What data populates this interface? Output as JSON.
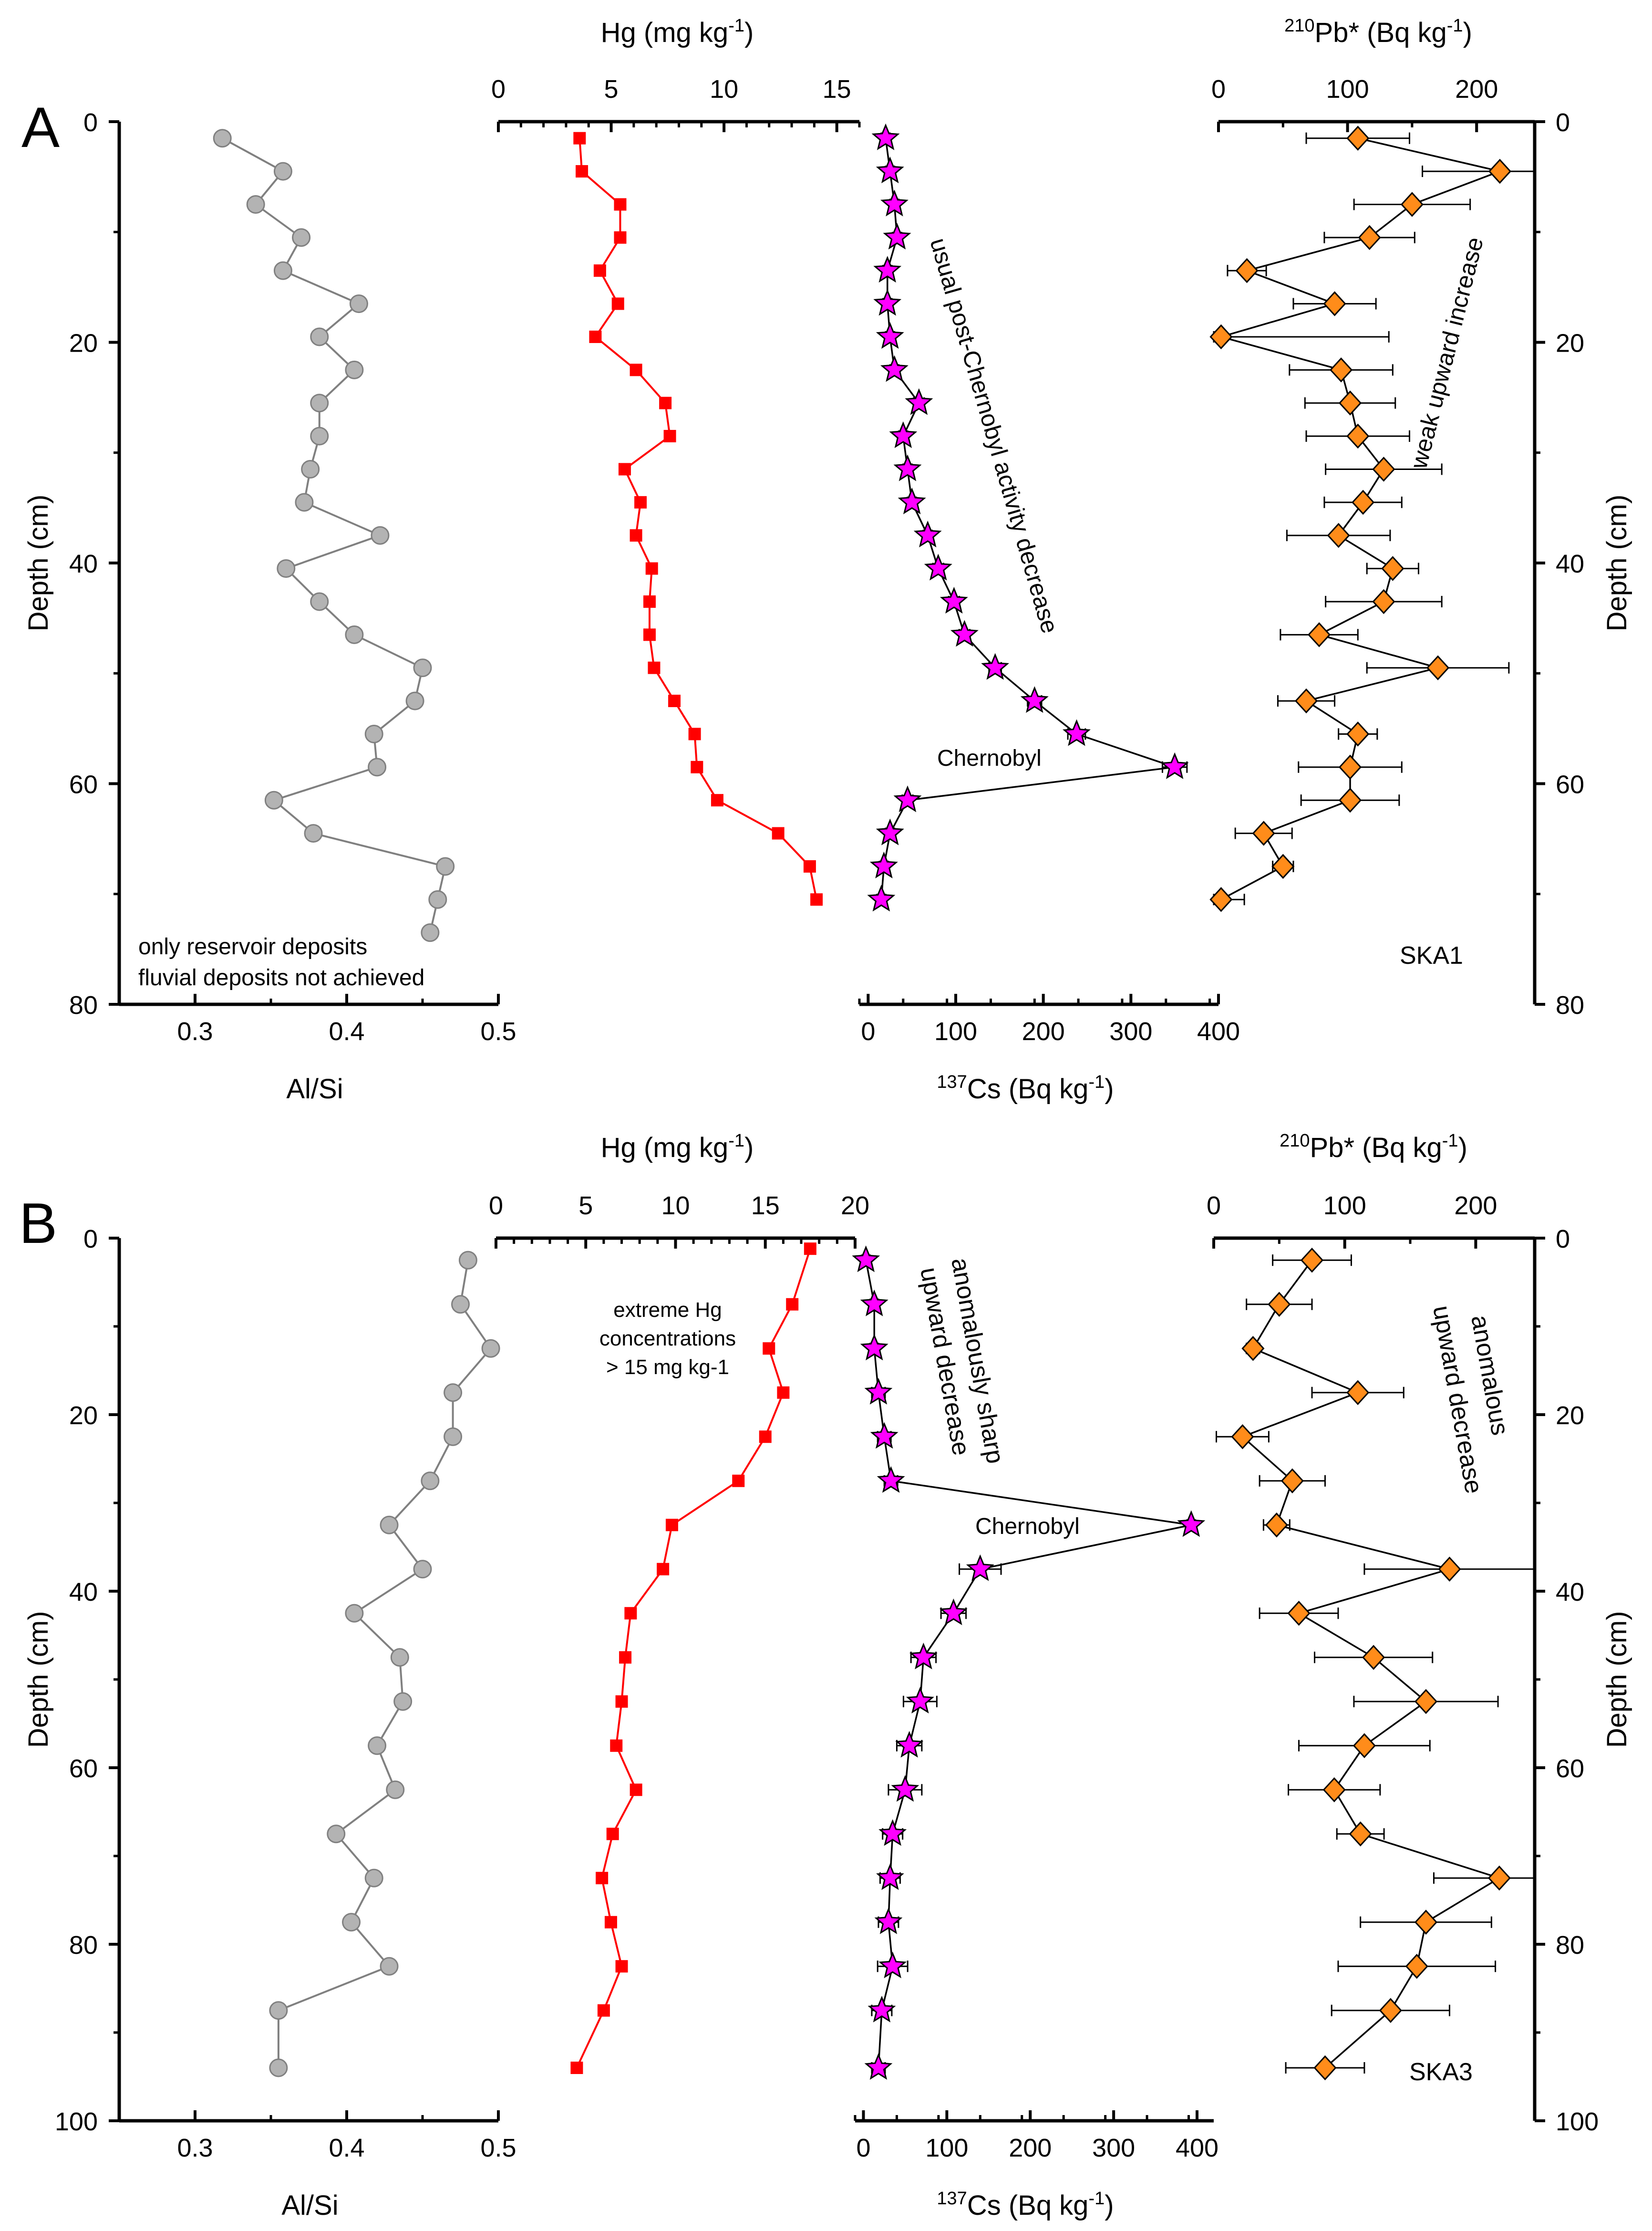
{
  "figure_caption": "Sediment cores SKA1 and SKA3: Al/Si, Hg, 137Cs and 210Pb* profiles vs depth",
  "colors": {
    "alsi": "#b3b3b3",
    "alsi_line": "#808080",
    "hg": "#ff0000",
    "cs": "#ff00ff",
    "pb": "#ff8c1a",
    "axis": "#000000"
  },
  "chart_data": [
    {
      "panel": "A",
      "core": "SKA1",
      "depth_axis": {
        "label": "Depth (cm)",
        "range": [
          0,
          80
        ],
        "ticks": [
          0,
          20,
          40,
          60,
          80
        ]
      },
      "alsi": {
        "type": "line",
        "xlabel": "Al/Si",
        "xlim": [
          0.25,
          0.5
        ],
        "xticks": [
          0.3,
          0.4,
          0.5
        ],
        "xtick_labels": [
          "0.3",
          "0.4",
          "0.5"
        ],
        "points": [
          [
            0.318,
            1.5
          ],
          [
            0.358,
            4.5
          ],
          [
            0.34,
            7.5
          ],
          [
            0.37,
            10.5
          ],
          [
            0.358,
            13.5
          ],
          [
            0.408,
            16.5
          ],
          [
            0.382,
            19.5
          ],
          [
            0.405,
            22.5
          ],
          [
            0.382,
            25.5
          ],
          [
            0.382,
            28.5
          ],
          [
            0.376,
            31.5
          ],
          [
            0.372,
            34.5
          ],
          [
            0.422,
            37.5
          ],
          [
            0.36,
            40.5
          ],
          [
            0.382,
            43.5
          ],
          [
            0.405,
            46.5
          ],
          [
            0.45,
            49.5
          ],
          [
            0.445,
            52.5
          ],
          [
            0.418,
            55.5
          ],
          [
            0.42,
            58.5
          ],
          [
            0.352,
            61.5
          ],
          [
            0.378,
            64.5
          ],
          [
            0.465,
            67.5
          ],
          [
            0.46,
            70.5
          ],
          [
            0.455,
            73.5
          ]
        ]
      },
      "hg": {
        "type": "line",
        "xlabel": "Hg (mg kg",
        "xlabel_sup": "-1",
        "xlabel_end": ")",
        "xlim": [
          0,
          16
        ],
        "xticks": [
          0,
          5,
          10,
          15
        ],
        "xtick_labels": [
          "0",
          "5",
          "10",
          "15"
        ],
        "points": [
          [
            3.6,
            1.5
          ],
          [
            3.7,
            4.5
          ],
          [
            5.4,
            7.5
          ],
          [
            5.4,
            10.5
          ],
          [
            4.5,
            13.5
          ],
          [
            5.3,
            16.5
          ],
          [
            4.3,
            19.5
          ],
          [
            6.1,
            22.5
          ],
          [
            7.4,
            25.5
          ],
          [
            7.6,
            28.5
          ],
          [
            5.6,
            31.5
          ],
          [
            6.3,
            34.5
          ],
          [
            6.1,
            37.5
          ],
          [
            6.8,
            40.5
          ],
          [
            6.7,
            43.5
          ],
          [
            6.7,
            46.5
          ],
          [
            6.9,
            49.5
          ],
          [
            7.8,
            52.5
          ],
          [
            8.7,
            55.5
          ],
          [
            8.8,
            58.5
          ],
          [
            9.7,
            61.5
          ],
          [
            12.4,
            64.5
          ],
          [
            13.8,
            67.5
          ],
          [
            14.1,
            70.5
          ]
        ]
      },
      "cs": {
        "type": "scatter-line",
        "xlabel": "Cs (Bq kg",
        "xlabel_pre": "137",
        "xlabel_sup": "-1",
        "xlabel_end": ")",
        "xlim": [
          -10,
          400
        ],
        "xticks": [
          0,
          100,
          200,
          300,
          400
        ],
        "xtick_labels": [
          "0",
          "100",
          "200",
          "300",
          "400"
        ],
        "points": [
          [
            20,
            1.5
          ],
          [
            25,
            4.5
          ],
          [
            30,
            7.5
          ],
          [
            33,
            10.5
          ],
          [
            22,
            13.5
          ],
          [
            22,
            16.5
          ],
          [
            25,
            19.5
          ],
          [
            30,
            22.5
          ],
          [
            58,
            25.5
          ],
          [
            40,
            28.5
          ],
          [
            45,
            31.5
          ],
          [
            50,
            34.5
          ],
          [
            68,
            37.5
          ],
          [
            80,
            40.5
          ],
          [
            98,
            43.5
          ],
          [
            110,
            46.5
          ],
          [
            145,
            49.5
          ],
          [
            190,
            52.5
          ],
          [
            238,
            55.5
          ],
          [
            350,
            58.5
          ],
          [
            45,
            61.5
          ],
          [
            25,
            64.5
          ],
          [
            18,
            67.5
          ],
          [
            15,
            70.5
          ]
        ],
        "errors": [
          5,
          5,
          5,
          5,
          5,
          5,
          5,
          5,
          6,
          5,
          5,
          5,
          5,
          6,
          6,
          6,
          7,
          8,
          10,
          14,
          6,
          5,
          5,
          5
        ]
      },
      "pb": {
        "type": "scatter-line",
        "xlabel": "Pb* (Bq kg",
        "xlabel_pre": "210",
        "xlabel_sup": "-1",
        "xlabel_end": ")",
        "xlim": [
          0,
          245
        ],
        "xticks": [
          0,
          100,
          200
        ],
        "xtick_labels": [
          "0",
          "100",
          "200"
        ],
        "points": [
          [
            108,
            1.5
          ],
          [
            218,
            4.5
          ],
          [
            150,
            7.5
          ],
          [
            117,
            10.5
          ],
          [
            22,
            13.5
          ],
          [
            90,
            16.5
          ],
          [
            2,
            19.5
          ],
          [
            95,
            22.5
          ],
          [
            102,
            25.5
          ],
          [
            108,
            28.5
          ],
          [
            128,
            31.5
          ],
          [
            112,
            34.5
          ],
          [
            93,
            37.5
          ],
          [
            135,
            40.5
          ],
          [
            128,
            43.5
          ],
          [
            78,
            46.5
          ],
          [
            170,
            49.5
          ],
          [
            68,
            52.5
          ],
          [
            108,
            55.5
          ],
          [
            102,
            58.5
          ],
          [
            102,
            61.5
          ],
          [
            35,
            64.5
          ],
          [
            50,
            67.5
          ],
          [
            2,
            70.5
          ]
        ],
        "errors": [
          40,
          60,
          45,
          35,
          15,
          32,
          130,
          40,
          35,
          40,
          45,
          30,
          40,
          20,
          45,
          30,
          55,
          22,
          15,
          40,
          38,
          22,
          8,
          18
        ]
      },
      "annotations": [
        "only reservoir deposits",
        "fluvial deposits not achieved",
        "usual post-Chernobyl activity decrease",
        "Chernobyl",
        "weak upward increase",
        "SKA1"
      ],
      "panel_label": "A"
    },
    {
      "panel": "B",
      "core": "SKA3",
      "depth_axis": {
        "label": "Depth (cm)",
        "range": [
          0,
          100
        ],
        "ticks": [
          0,
          20,
          40,
          60,
          80,
          100
        ]
      },
      "alsi": {
        "type": "line",
        "xlabel": "Al/Si",
        "xlim": [
          0.25,
          0.5
        ],
        "xticks": [
          0.3,
          0.4,
          0.5
        ],
        "xtick_labels": [
          "0.3",
          "0.4",
          "0.5"
        ],
        "points": [
          [
            0.48,
            2.5
          ],
          [
            0.475,
            7.5
          ],
          [
            0.495,
            12.5
          ],
          [
            0.47,
            17.5
          ],
          [
            0.47,
            22.5
          ],
          [
            0.455,
            27.5
          ],
          [
            0.428,
            32.5
          ],
          [
            0.45,
            37.5
          ],
          [
            0.405,
            42.5
          ],
          [
            0.435,
            47.5
          ],
          [
            0.437,
            52.5
          ],
          [
            0.42,
            57.5
          ],
          [
            0.432,
            62.5
          ],
          [
            0.393,
            67.5
          ],
          [
            0.418,
            72.5
          ],
          [
            0.403,
            77.5
          ],
          [
            0.428,
            82.5
          ],
          [
            0.355,
            87.5
          ],
          [
            0.355,
            94
          ]
        ]
      },
      "hg": {
        "type": "line",
        "xlabel": "Hg (mg kg",
        "xlabel_sup": "-1",
        "xlabel_end": ")",
        "xlim": [
          0,
          20
        ],
        "xticks": [
          0,
          5,
          10,
          15,
          20
        ],
        "xtick_labels": [
          "0",
          "5",
          "10",
          "15",
          "20"
        ],
        "points": [
          [
            17.5,
            1.2
          ],
          [
            16.5,
            7.5
          ],
          [
            15.2,
            12.5
          ],
          [
            16.0,
            17.5
          ],
          [
            15.0,
            22.5
          ],
          [
            13.5,
            27.5
          ],
          [
            9.8,
            32.5
          ],
          [
            9.3,
            37.5
          ],
          [
            7.5,
            42.5
          ],
          [
            7.2,
            47.5
          ],
          [
            7.0,
            52.5
          ],
          [
            6.7,
            57.5
          ],
          [
            7.8,
            62.5
          ],
          [
            6.5,
            67.5
          ],
          [
            5.9,
            72.5
          ],
          [
            6.4,
            77.5
          ],
          [
            7.0,
            82.5
          ],
          [
            6.0,
            87.5
          ],
          [
            4.5,
            94
          ]
        ]
      },
      "cs": {
        "type": "scatter-line",
        "xlabel": "Cs (Bq kg",
        "xlabel_pre": "137",
        "xlabel_sup": "-1",
        "xlabel_end": ")",
        "xlim": [
          -10,
          420
        ],
        "xticks": [
          0,
          100,
          200,
          300,
          400
        ],
        "xtick_labels": [
          "0",
          "100",
          "200",
          "300",
          "400"
        ],
        "points": [
          [
            3,
            2.5
          ],
          [
            13,
            7.5
          ],
          [
            13,
            12.5
          ],
          [
            18,
            17.5
          ],
          [
            25,
            22.5
          ],
          [
            33,
            27.5
          ],
          [
            393,
            32.5
          ],
          [
            140,
            37.5
          ],
          [
            108,
            42.5
          ],
          [
            72,
            47.5
          ],
          [
            68,
            52.5
          ],
          [
            55,
            57.5
          ],
          [
            50,
            62.5
          ],
          [
            35,
            67.5
          ],
          [
            32,
            72.5
          ],
          [
            30,
            77.5
          ],
          [
            35,
            82.5
          ],
          [
            22,
            87.5
          ],
          [
            18,
            94
          ]
        ],
        "errors": [
          5,
          5,
          5,
          8,
          8,
          8,
          5,
          25,
          15,
          15,
          20,
          15,
          20,
          12,
          12,
          12,
          18,
          12,
          8
        ]
      },
      "pb": {
        "type": "scatter-line",
        "xlabel": "Pb* (Bq kg",
        "xlabel_pre": "210",
        "xlabel_sup": "-1",
        "xlabel_end": ")",
        "xlim": [
          0,
          245
        ],
        "xticks": [
          0,
          100,
          200
        ],
        "xtick_labels": [
          "0",
          "100",
          "200"
        ],
        "points": [
          [
            75,
            2.5
          ],
          [
            50,
            7.5
          ],
          [
            30,
            12.5
          ],
          [
            110,
            17.5
          ],
          [
            22,
            22.5
          ],
          [
            60,
            27.5
          ],
          [
            48,
            32.5
          ],
          [
            180,
            37.5
          ],
          [
            65,
            42.5
          ],
          [
            122,
            47.5
          ],
          [
            162,
            52.5
          ],
          [
            115,
            57.5
          ],
          [
            92,
            62.5
          ],
          [
            112,
            67.5
          ],
          [
            218,
            72.5
          ],
          [
            162,
            77.5
          ],
          [
            155,
            82.5
          ],
          [
            135,
            87.5
          ],
          [
            85,
            94
          ]
        ],
        "errors": [
          30,
          25,
          5,
          35,
          20,
          25,
          10,
          65,
          30,
          45,
          55,
          50,
          35,
          18,
          50,
          50,
          60,
          45,
          30
        ]
      },
      "annotations": [
        "extreme Hg",
        "concentrations",
        "> 15 mg kg-1",
        "anomalously sharp",
        "upward decrease",
        "Chernobyl",
        "anomalous",
        "upward decrease",
        "SKA3"
      ],
      "panel_label": "B"
    }
  ]
}
